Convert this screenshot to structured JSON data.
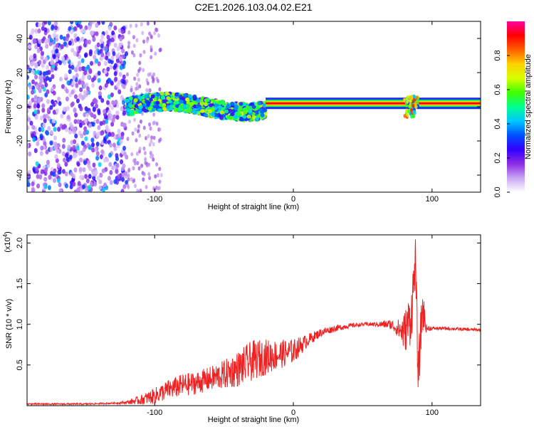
{
  "figure_title": "C2E1.2026.103.04.02.E21",
  "chart_data": [
    {
      "type": "heatmap",
      "name": "spectrogram",
      "title": "C2E1.2026.103.04.02.E21",
      "xlabel": "Height of straight line (km)",
      "ylabel": "Frequency (Hz)",
      "xlim": [
        -192,
        135
      ],
      "ylim": [
        -50,
        50
      ],
      "x_ticks": [
        -100,
        0,
        100
      ],
      "x_tick_labels": [
        "-100",
        "0",
        "100"
      ],
      "y_ticks": [
        -40,
        -20,
        0,
        20,
        40
      ],
      "y_tick_labels": [
        "-40",
        "-20",
        "0",
        "20",
        "40"
      ],
      "colorbar": {
        "label": "Normalized spectral amplitude",
        "range": [
          0.0,
          1.0
        ],
        "ticks": [
          0.0,
          0.2,
          0.4,
          0.6,
          0.8
        ],
        "tick_labels": [
          "0.0",
          "0.2",
          "0.4",
          "0.6",
          "0.8"
        ],
        "colormap": [
          "#ffffff",
          "#c9a6f5",
          "#8a2be2",
          "#3300ff",
          "#0050ff",
          "#00c8ff",
          "#00ff90",
          "#40ff00",
          "#d8ff00",
          "#ffd000",
          "#ff6000",
          "#ff0000",
          "#ff00a0"
        ]
      },
      "tone_band": {
        "x_start": -20,
        "x_end": 135,
        "frequency_hz": 2,
        "amplitude": 0.92
      },
      "features": [
        {
          "x_start": -192,
          "x_end": -120,
          "description": "broadband noise",
          "amplitude": 0.3
        },
        {
          "x_start": -120,
          "x_end": -20,
          "description": "wandering low-frequency band near 0-5 Hz",
          "amplitude": 0.5
        },
        {
          "x_start": 80,
          "x_end": 90,
          "description": "burst",
          "amplitude": 0.6
        }
      ]
    },
    {
      "type": "line",
      "name": "snr",
      "xlabel": "Height of straight line (km)",
      "ylabel": "SNR (10 * v/v)",
      "y_multiplier": "(x10^4)",
      "y_multiplier_base": "(x10",
      "y_multiplier_exp": "4",
      "y_multiplier_close": ")",
      "xlim": [
        -192,
        135
      ],
      "ylim": [
        0,
        2.1
      ],
      "x_ticks": [
        -100,
        0,
        100
      ],
      "x_tick_labels": [
        "-100",
        "0",
        "100"
      ],
      "y_ticks": [
        0.5,
        1.0,
        1.5,
        2.0
      ],
      "y_tick_labels": [
        "0.5",
        "1.0",
        "1.5",
        "2.0"
      ],
      "color": "#ee2222",
      "series": [
        {
          "name": "SNR",
          "x": [
            -192,
            -170,
            -150,
            -130,
            -120,
            -110,
            -100,
            -90,
            -80,
            -70,
            -60,
            -50,
            -40,
            -30,
            -20,
            -10,
            0,
            10,
            20,
            30,
            40,
            50,
            60,
            70,
            75,
            80,
            85,
            88,
            90,
            93,
            96,
            100,
            110,
            120,
            135
          ],
          "y": [
            0.02,
            0.02,
            0.02,
            0.03,
            0.04,
            0.07,
            0.12,
            0.2,
            0.25,
            0.28,
            0.33,
            0.38,
            0.45,
            0.55,
            0.6,
            0.63,
            0.67,
            0.8,
            0.9,
            0.95,
            0.98,
            1.0,
            1.0,
            1.0,
            0.95,
            0.9,
            1.1,
            1.8,
            0.35,
            1.2,
            0.95,
            0.95,
            0.95,
            0.94,
            0.93
          ],
          "noise_amplitude": [
            0.01,
            0.01,
            0.01,
            0.01,
            0.02,
            0.06,
            0.1,
            0.12,
            0.14,
            0.14,
            0.15,
            0.18,
            0.22,
            0.25,
            0.22,
            0.18,
            0.15,
            0.08,
            0.05,
            0.04,
            0.03,
            0.02,
            0.03,
            0.06,
            0.1,
            0.25,
            0.35,
            0.3,
            0.3,
            0.3,
            0.05,
            0.02,
            0.02,
            0.02,
            0.02
          ]
        }
      ]
    }
  ]
}
